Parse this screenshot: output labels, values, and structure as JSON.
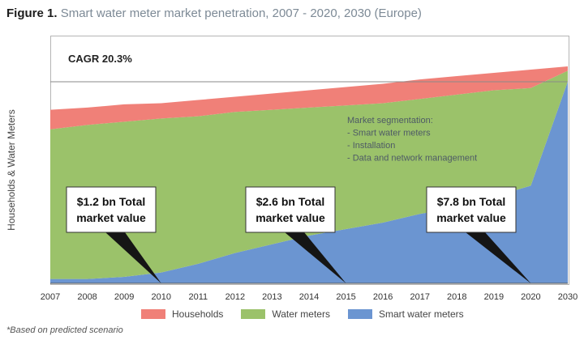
{
  "figure": {
    "label": "Figure 1.",
    "title": "Smart water meter market penetration, 2007 - 2020, 2030 (Europe)",
    "footnote": "*Based on predicted scenario"
  },
  "chart_data": {
    "type": "area",
    "stacked": true,
    "title": "Smart water meter market penetration, 2007 - 2020, 2030 (Europe)",
    "ylabel": "Households & Water Meters",
    "xlabel": "",
    "categories": [
      "2007",
      "2008",
      "2009",
      "2010",
      "2011",
      "2012",
      "2013",
      "2014",
      "2015",
      "2016",
      "2017",
      "2018",
      "2019",
      "2020",
      "2030"
    ],
    "ylim": [
      0,
      100
    ],
    "totals": [
      80,
      81,
      82.5,
      83,
      84.5,
      86,
      87.5,
      89,
      90.5,
      92,
      94,
      95.5,
      97,
      98.5,
      100
    ],
    "series": [
      {
        "name": "Smart water meters",
        "color": "#6b95d1",
        "values": [
          2,
          2,
          3,
          5,
          9,
          14,
          18,
          22,
          25,
          28,
          32,
          35,
          40,
          45,
          93
        ]
      },
      {
        "name": "Water meters",
        "color": "#9bc26a",
        "values": [
          69,
          71,
          71.5,
          71,
          68,
          65,
          62,
          59,
          57,
          55,
          53,
          52,
          49,
          45,
          5
        ]
      },
      {
        "name": "Households",
        "color": "#f08078",
        "values": [
          9,
          8,
          8,
          7,
          7.5,
          7,
          7.5,
          8,
          8.5,
          9,
          9,
          8.5,
          8,
          8.5,
          2
        ]
      }
    ],
    "annotations": {
      "cagr": "CAGR 20.3%",
      "segmentation": [
        "Market segmentation:",
        "- Smart water meters",
        "- Installation",
        "- Data and network management"
      ],
      "callouts": [
        {
          "line1": "$1.2 bn Total",
          "line2": "market value",
          "year": "2010"
        },
        {
          "line1": "$2.6 bn Total",
          "line2": "market value",
          "year": "2015"
        },
        {
          "line1": "$7.8 bn Total",
          "line2": "market value",
          "year": "2020"
        }
      ]
    },
    "legend": {
      "position": "bottom",
      "items": [
        {
          "label": "Households",
          "color": "#f08078"
        },
        {
          "label": "Water meters",
          "color": "#9bc26a"
        },
        {
          "label": "Smart water meters",
          "color": "#6b95d1"
        }
      ]
    }
  }
}
